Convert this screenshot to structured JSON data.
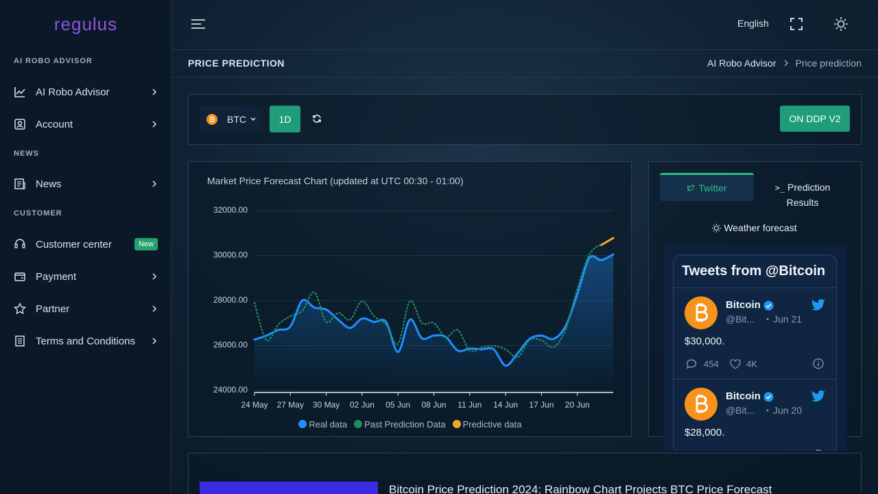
{
  "sidebar": {
    "logo": "regulus",
    "sections": [
      {
        "title": "AI ROBO ADVISOR",
        "items": [
          {
            "label": "AI Robo Advisor"
          },
          {
            "label": "Account"
          }
        ]
      },
      {
        "title": "NEWS",
        "items": [
          {
            "label": "News"
          }
        ]
      },
      {
        "title": "CUSTOMER",
        "items": [
          {
            "label": "Customer center",
            "badge": "New"
          },
          {
            "label": "Payment"
          },
          {
            "label": "Partner"
          },
          {
            "label": "Terms and Conditions"
          }
        ]
      }
    ]
  },
  "topbar": {
    "language": "English"
  },
  "page_header": {
    "title": "PRICE PREDICTION",
    "breadcrumb": [
      "AI Robo Advisor",
      "Price prediction"
    ]
  },
  "toolbar": {
    "coin": "BTC",
    "interval": "1D",
    "model": "ON DDP V2"
  },
  "chart_data": {
    "type": "line",
    "title": "Market Price Forecast Chart (updated at UTC 00:30 - 01:00)",
    "categories": [
      "24 May",
      null,
      null,
      "27 May",
      null,
      null,
      "30 May",
      null,
      null,
      "02 Jun",
      null,
      null,
      "05 Jun",
      null,
      null,
      "08 Jun",
      null,
      null,
      "11 Jun",
      null,
      null,
      "14 Jun",
      null,
      null,
      "17 Jun",
      null,
      null,
      "20 Jun",
      null,
      null,
      null
    ],
    "ylim": [
      24000,
      32000
    ],
    "yticks": [
      {
        "value": 24000,
        "label": "24000.00"
      },
      {
        "value": 26000,
        "label": "26000.00"
      },
      {
        "value": 28000,
        "label": "28000.00"
      },
      {
        "value": 30000,
        "label": "30000.00"
      },
      {
        "value": 32000,
        "label": "32000.00"
      }
    ],
    "grid": true,
    "series": [
      {
        "name": "Real data",
        "color": "#1e90ff",
        "style": "solid",
        "values": [
          26260,
          26440,
          26690,
          26840,
          28000,
          27690,
          27600,
          27150,
          26780,
          27200,
          27050,
          27050,
          25710,
          27150,
          26320,
          26440,
          26380,
          25770,
          25860,
          25830,
          25830,
          25100,
          25650,
          26290,
          26440,
          26290,
          26840,
          28280,
          29890,
          29800,
          30050
        ]
      },
      {
        "name": "Past Prediction Data",
        "color": "#1f8f62",
        "style": "dotted",
        "values": [
          27900,
          26230,
          26930,
          27300,
          27540,
          28370,
          27050,
          27450,
          27150,
          27970,
          27300,
          26930,
          26080,
          27970,
          27000,
          27000,
          26380,
          26690,
          25770,
          25920,
          25980,
          25830,
          25470,
          26230,
          26230,
          25920,
          26690,
          28520,
          30050,
          30500,
          null
        ]
      },
      {
        "name": "Predictive data",
        "color": "#f5a623",
        "style": "solid",
        "values": [
          null,
          null,
          null,
          null,
          null,
          null,
          null,
          null,
          null,
          null,
          null,
          null,
          null,
          null,
          null,
          null,
          null,
          null,
          null,
          null,
          null,
          null,
          null,
          null,
          null,
          null,
          null,
          null,
          null,
          30470,
          30780
        ]
      }
    ]
  },
  "tabs": [
    "Twitter",
    "Prediction Results",
    "Weather forecast"
  ],
  "tweets": {
    "header": "Tweets from @Bitcoin",
    "items": [
      {
        "name": "Bitcoin",
        "handle": "@Bit...",
        "date": "Jun 21",
        "text": "$30,000.",
        "replies": "454",
        "likes": "4K"
      },
      {
        "name": "Bitcoin",
        "handle": "@Bit...",
        "date": "Jun 20",
        "text": "$28,000.",
        "replies": "",
        "likes": ""
      }
    ]
  },
  "news": {
    "title": "Bitcoin Price Prediction 2024: Rainbow Chart Projects BTC Price Forecast"
  }
}
